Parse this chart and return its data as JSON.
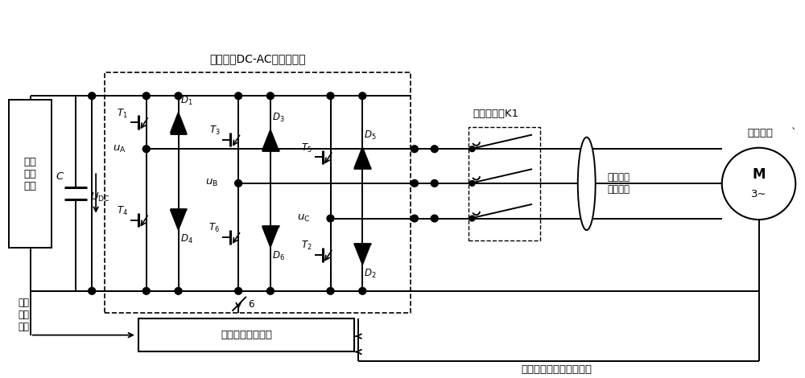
{
  "title": "三相桥式DC-AC双向变换器",
  "battery_text": "充电\n动力\n电池",
  "cap_label": "C",
  "udc_label": "$U_{\\mathrm{DC}}$",
  "phase_A_label": "$u_{\\mathrm{A}}$",
  "phase_B_label": "$u_{\\mathrm{B}}$",
  "phase_C_label": "$u_{\\mathrm{C}}$",
  "top_T_labels": [
    "$T_1$",
    "$T_3$",
    "$T_5$"
  ],
  "top_D_labels": [
    "$D_1$",
    "$D_3$",
    "$D_5$"
  ],
  "bot_T_labels": [
    "$T_4$",
    "$T_6$",
    "$T_2$"
  ],
  "bot_D_labels": [
    "$D_4$",
    "$D_6$",
    "$D_2$"
  ],
  "relay_label": "继电器开关K1",
  "motor_M": "M",
  "motor_3": "3~",
  "motor_label": "驱动电机",
  "current_sensor_label": "电机侧交\n流量采集",
  "cpu_label": "中央控制微处理器",
  "batt_volt_label": "电池\n电压\n采集",
  "motor_signal_label": "电机速度、位置信号采集",
  "sw6_label": "6",
  "bg": "#ffffff",
  "lc": "#000000",
  "fs": 9.5,
  "fs_small": 8.5
}
